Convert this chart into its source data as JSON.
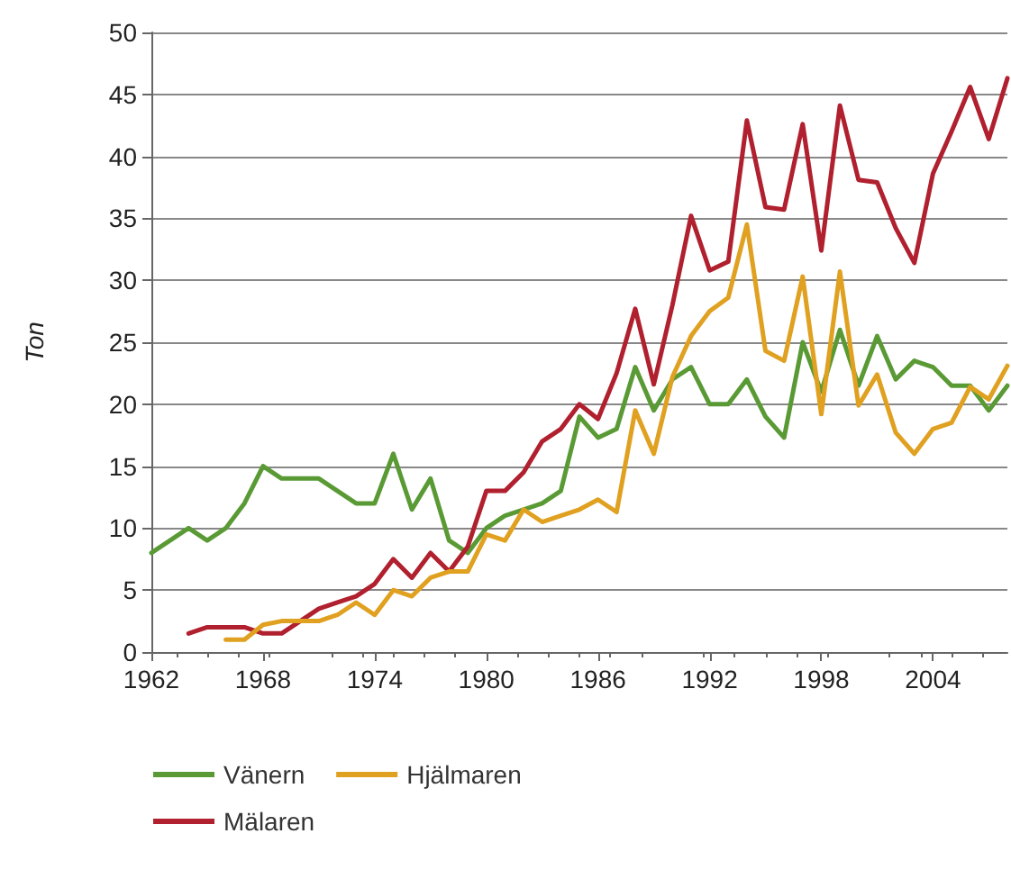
{
  "chart_data": {
    "type": "line",
    "ylabel": "Ton",
    "x": [
      1962,
      1963,
      1964,
      1965,
      1966,
      1967,
      1968,
      1969,
      1970,
      1971,
      1972,
      1973,
      1974,
      1975,
      1976,
      1977,
      1978,
      1979,
      1980,
      1981,
      1982,
      1983,
      1984,
      1985,
      1986,
      1987,
      1988,
      1989,
      1990,
      1991,
      1992,
      1993,
      1994,
      1995,
      1996,
      1997,
      1998,
      1999,
      2000,
      2001,
      2002,
      2003,
      2004,
      2005,
      2006,
      2007,
      2008
    ],
    "series": [
      {
        "name": "Vänern",
        "color": "#5a9a35",
        "values": [
          8,
          9,
          10,
          9,
          10,
          12,
          15,
          14,
          14,
          14,
          13,
          12,
          12,
          16,
          11.5,
          14,
          9,
          8,
          10,
          11,
          11.5,
          12,
          13,
          19,
          17.3,
          18,
          23,
          19.5,
          22,
          23,
          20,
          20,
          22,
          19,
          17.3,
          25,
          21,
          26,
          21.5,
          25.5,
          22,
          23.5,
          23,
          21.5,
          21.5,
          19.5,
          21.5
        ]
      },
      {
        "name": "Mälaren",
        "color": "#b0202e",
        "values": [
          null,
          null,
          1.5,
          2,
          2,
          2,
          1.5,
          1.5,
          2.5,
          3.5,
          4,
          4.5,
          5.5,
          7.5,
          6,
          8,
          6.5,
          8.5,
          13,
          13,
          14.5,
          17,
          18,
          20,
          18.8,
          22.5,
          27.7,
          21.6,
          28,
          35.2,
          30.8,
          31.5,
          42.9,
          35.9,
          35.7,
          42.6,
          32.4,
          44.1,
          38.1,
          37.9,
          34.2,
          31.4,
          38.6,
          42,
          45.6,
          41.4,
          46.3
        ]
      },
      {
        "name": "Hjälmaren",
        "color": "#e0a020",
        "values": [
          null,
          null,
          null,
          null,
          1,
          1,
          2.2,
          2.5,
          2.5,
          2.5,
          3,
          4,
          3,
          5,
          4.5,
          6,
          6.5,
          6.5,
          9.5,
          9,
          11.5,
          10.5,
          11,
          11.5,
          12.3,
          11.3,
          19.5,
          16,
          22.2,
          25.5,
          27.5,
          28.6,
          34.5,
          24.3,
          23.5,
          30.3,
          19.2,
          30.7,
          19.9,
          22.4,
          17.7,
          16,
          18,
          18.5,
          21.4,
          20.4,
          23.1
        ]
      }
    ],
    "xlim": [
      1962,
      2008
    ],
    "xticks": [
      1962,
      1968,
      1974,
      1980,
      1986,
      1992,
      1998,
      2004
    ],
    "ylim": [
      0,
      50
    ],
    "yticks": [
      0,
      5,
      10,
      15,
      20,
      25,
      30,
      35,
      40,
      45,
      50
    ],
    "grid": "y",
    "legend": "bottom left",
    "marker": "none",
    "line_style": "solid"
  }
}
